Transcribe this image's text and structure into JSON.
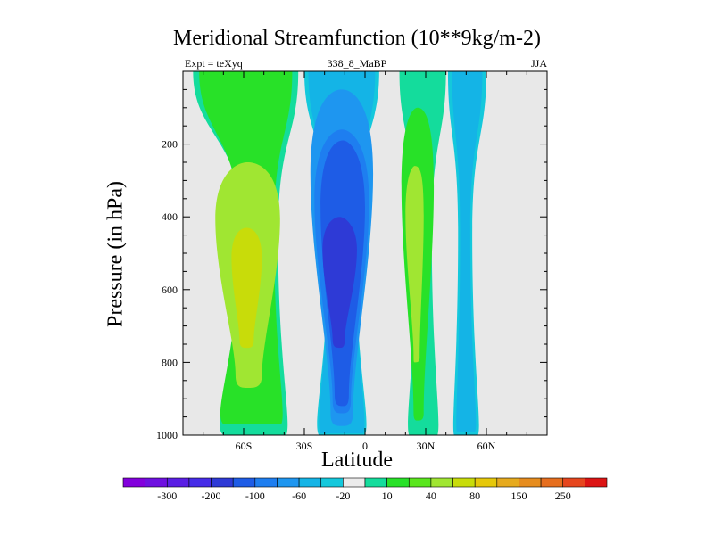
{
  "chart_data": {
    "type": "contour",
    "title": "Meridional Streamfunction (10**9kg/m-2)",
    "subtitle_left": "Expt = teXyq",
    "subtitle_center": "338_8_MaBP",
    "subtitle_right": "JJA",
    "xlabel": "Latitude",
    "ylabel": "Pressure (in hPa)",
    "xlim": [
      -90,
      90
    ],
    "ylim": [
      1000,
      0
    ],
    "x_ticks": [
      {
        "value": -60,
        "label": "60S"
      },
      {
        "value": -30,
        "label": "30S"
      },
      {
        "value": 0,
        "label": "0"
      },
      {
        "value": 30,
        "label": "30N"
      },
      {
        "value": 60,
        "label": "60N"
      }
    ],
    "y_ticks": [
      {
        "value": 200,
        "label": "200"
      },
      {
        "value": 400,
        "label": "400"
      },
      {
        "value": 600,
        "label": "600"
      },
      {
        "value": 800,
        "label": "800"
      },
      {
        "value": 1000,
        "label": "1000"
      }
    ],
    "background_color": "#e8e8e8",
    "colorbar": {
      "colors": [
        "#8200dc",
        "#6e10e0",
        "#5a1ee4",
        "#462ce8",
        "#2e3ad6",
        "#1e5ce6",
        "#1e7ef0",
        "#1e96f0",
        "#14b4e6",
        "#14c8dc",
        "#ebebeb",
        "#14dc9c",
        "#28e128",
        "#5ae61e",
        "#a0e632",
        "#c8dc0a",
        "#e6c80a",
        "#e6aa1e",
        "#e68c1e",
        "#e66e1e",
        "#e6461e",
        "#dc1414"
      ],
      "labels": [
        "-300",
        "-200",
        "-100",
        "-60",
        "-20",
        "10",
        "40",
        "80",
        "150",
        "250"
      ],
      "label_after_box": [
        1,
        3,
        5,
        7,
        9,
        11,
        13,
        15,
        17,
        19
      ]
    },
    "cells": [
      {
        "name": "southern-positive-cell",
        "sign": "positive",
        "levels": [
          {
            "color": "#14dc9c",
            "lat_edges": [
              -85,
              -60,
              -43,
              -33
            ],
            "p_top": 0,
            "p_bottom": 1000
          },
          {
            "color": "#28e128",
            "lat_edges": [
              -82,
              -62,
              -45,
              -36
            ],
            "p_top": 0,
            "p_bottom": 970
          },
          {
            "color": "#a0e632",
            "lat_edges": [
              -74,
              -64,
              -51,
              -42
            ],
            "p_top": 250,
            "p_bottom": 870
          },
          {
            "color": "#c8dc0a",
            "lat_edges": [
              -66,
              -62,
              -55,
              -51
            ],
            "p_top": 430,
            "p_bottom": 760
          }
        ]
      },
      {
        "name": "equatorial-negative-cell",
        "sign": "negative",
        "levels": [
          {
            "color": "#14c8dc",
            "lat_edges": [
              -30,
              -18,
              -5,
              7
            ],
            "p_top": 0,
            "p_bottom": 1000
          },
          {
            "color": "#14b4e6",
            "lat_edges": [
              -28,
              -18,
              -5,
              5
            ],
            "p_top": 0,
            "p_bottom": 995
          },
          {
            "color": "#1e96f0",
            "lat_edges": [
              -27,
              -17,
              -6,
              4
            ],
            "p_top": 50,
            "p_bottom": 975
          },
          {
            "color": "#1e7ef0",
            "lat_edges": [
              -25,
              -16,
              -7,
              2
            ],
            "p_top": 160,
            "p_bottom": 940
          },
          {
            "color": "#1e5ce6",
            "lat_edges": [
              -22,
              -15,
              -8,
              0
            ],
            "p_top": 190,
            "p_bottom": 920
          },
          {
            "color": "#2e3ad6",
            "lat_edges": [
              -21,
              -16,
              -10,
              -4
            ],
            "p_top": 400,
            "p_bottom": 760
          }
        ]
      },
      {
        "name": "northern-positive-cell",
        "sign": "positive",
        "levels": [
          {
            "color": "#14dc9c",
            "lat_edges": [
              17,
              25,
              33,
              40
            ],
            "p_top": 0,
            "p_bottom": 1000
          },
          {
            "color": "#28e128",
            "lat_edges": [
              18,
              24,
              29,
              34
            ],
            "p_top": 100,
            "p_bottom": 960
          },
          {
            "color": "#a0e632",
            "lat_edges": [
              20,
              24,
              27,
              29
            ],
            "p_top": 260,
            "p_bottom": 800
          }
        ]
      },
      {
        "name": "northern-negative-cell",
        "sign": "negative",
        "levels": [
          {
            "color": "#14c8dc",
            "lat_edges": [
              41,
              46,
              53,
              60
            ],
            "p_top": 0,
            "p_bottom": 1000
          },
          {
            "color": "#14b4e6",
            "lat_edges": [
              43,
              47,
              52,
              58
            ],
            "p_top": 0,
            "p_bottom": 990
          }
        ]
      }
    ]
  }
}
